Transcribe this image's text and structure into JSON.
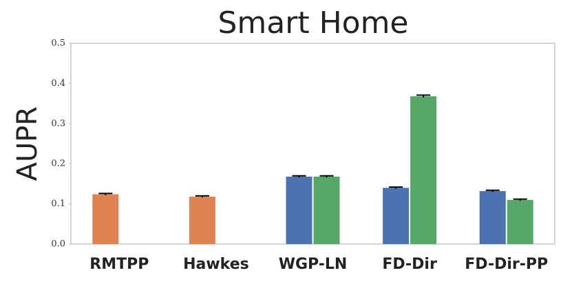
{
  "chart_data": {
    "type": "bar",
    "title": "Smart Home",
    "y_label": "AUPR",
    "categories": [
      "RMTPP",
      "Hawkes",
      "WGP-LN",
      "FD-Dir",
      "FD-Dir-PP"
    ],
    "series": [
      {
        "color": "#dd8452",
        "values": [
          0.124,
          0.118,
          null,
          null,
          null
        ],
        "errors": [
          0.002,
          0.002,
          null,
          null,
          null
        ]
      },
      {
        "color": "#4c72b0",
        "values": [
          null,
          null,
          0.168,
          0.14,
          0.132
        ],
        "errors": [
          null,
          null,
          0.002,
          0.002,
          0.002
        ]
      },
      {
        "color": "#55a868",
        "values": [
          null,
          null,
          0.168,
          0.368,
          0.11
        ],
        "errors": [
          null,
          null,
          0.002,
          0.003,
          0.002
        ]
      }
    ],
    "ylim": [
      0,
      0.5
    ],
    "yticks": [
      {
        "value": 0,
        "label": "0.0"
      },
      0.1,
      0.2,
      0.3,
      0.4,
      0.5
    ],
    "grid": false
  }
}
